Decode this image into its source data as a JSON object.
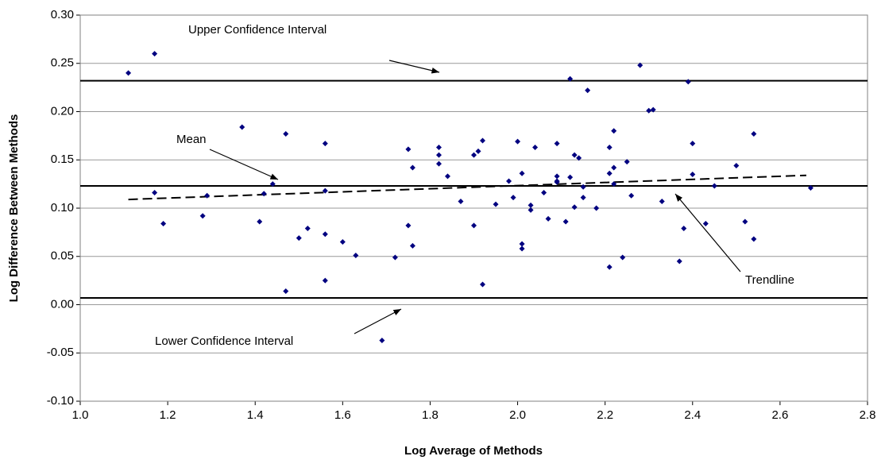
{
  "chart_data": {
    "type": "scatter",
    "xlabel": "Log Average of Methods",
    "ylabel": "Log Difference Between Methods",
    "x": [
      1.11,
      1.17,
      1.17,
      1.19,
      1.28,
      1.29,
      1.37,
      1.41,
      1.42,
      1.44,
      1.47,
      1.47,
      1.5,
      1.52,
      1.56,
      1.56,
      1.56,
      1.56,
      1.6,
      1.63,
      1.69,
      1.72,
      1.75,
      1.75,
      1.76,
      1.76,
      1.82,
      1.82,
      1.82,
      1.84,
      1.87,
      1.9,
      1.9,
      1.91,
      1.92,
      1.92,
      1.95,
      1.98,
      1.99,
      2.0,
      2.01,
      2.01,
      2.01,
      2.03,
      2.03,
      2.04,
      2.06,
      2.07,
      2.09,
      2.09,
      2.09,
      2.09,
      2.11,
      2.12,
      2.12,
      2.13,
      2.13,
      2.14,
      2.15,
      2.15,
      2.16,
      2.18,
      2.21,
      2.21,
      2.21,
      2.22,
      2.22,
      2.22,
      2.24,
      2.25,
      2.26,
      2.28,
      2.3,
      2.31,
      2.33,
      2.37,
      2.38,
      2.39,
      2.4,
      2.4,
      2.45,
      2.43,
      2.5,
      2.52,
      2.54,
      2.54,
      2.67
    ],
    "values": [
      0.24,
      0.26,
      0.116,
      0.084,
      0.092,
      0.113,
      0.184,
      0.086,
      0.115,
      0.125,
      0.177,
      0.014,
      0.069,
      0.079,
      0.073,
      0.167,
      0.118,
      0.025,
      0.065,
      0.051,
      -0.037,
      0.049,
      0.082,
      0.161,
      0.061,
      0.142,
      0.163,
      0.155,
      0.146,
      0.133,
      0.107,
      0.155,
      0.082,
      0.159,
      0.17,
      0.021,
      0.104,
      0.128,
      0.111,
      0.169,
      0.136,
      0.063,
      0.058,
      0.103,
      0.098,
      0.163,
      0.116,
      0.089,
      0.133,
      0.128,
      0.127,
      0.167,
      0.086,
      0.132,
      0.234,
      0.101,
      0.155,
      0.152,
      0.122,
      0.111,
      0.222,
      0.1,
      0.163,
      0.136,
      0.039,
      0.142,
      0.18,
      0.125,
      0.049,
      0.148,
      0.113,
      0.248,
      0.201,
      0.202,
      0.107,
      0.045,
      0.079,
      0.231,
      0.167,
      0.135,
      0.123,
      0.084,
      0.144,
      0.086,
      0.177,
      0.068,
      0.121
    ],
    "color": "#000080",
    "reference_lines": [
      0.232,
      0.123,
      0.007
    ],
    "trendline": {
      "x": [
        1.11,
        2.66
      ],
      "values": [
        0.109,
        0.134
      ]
    },
    "annotations": [
      "Upper Confidence Interval",
      "Mean",
      "Trendline",
      "Lower Confidence Interval"
    ],
    "xlim": [
      1.0,
      2.8
    ],
    "xticks": [
      {
        "value": 1,
        "label": "1.0"
      },
      1.2,
      1.4,
      1.6,
      1.8,
      {
        "value": 2,
        "label": "2.0"
      },
      2.2,
      2.4,
      2.6,
      2.8
    ],
    "ylim": [
      -0.1,
      0.3
    ],
    "yticks": [
      {
        "value": -0.1,
        "label": "-0.10"
      },
      {
        "value": -0.05,
        "label": "-0.05"
      },
      {
        "value": 0,
        "label": "0.00"
      },
      {
        "value": 0.05,
        "label": "0.05"
      },
      {
        "value": 0.1,
        "label": "0.10"
      },
      {
        "value": 0.15,
        "label": "0.15"
      },
      {
        "value": 0.2,
        "label": "0.20"
      },
      {
        "value": 0.25,
        "label": "0.25"
      },
      {
        "value": 0.3,
        "label": "0.30"
      }
    ],
    "grid": true
  }
}
